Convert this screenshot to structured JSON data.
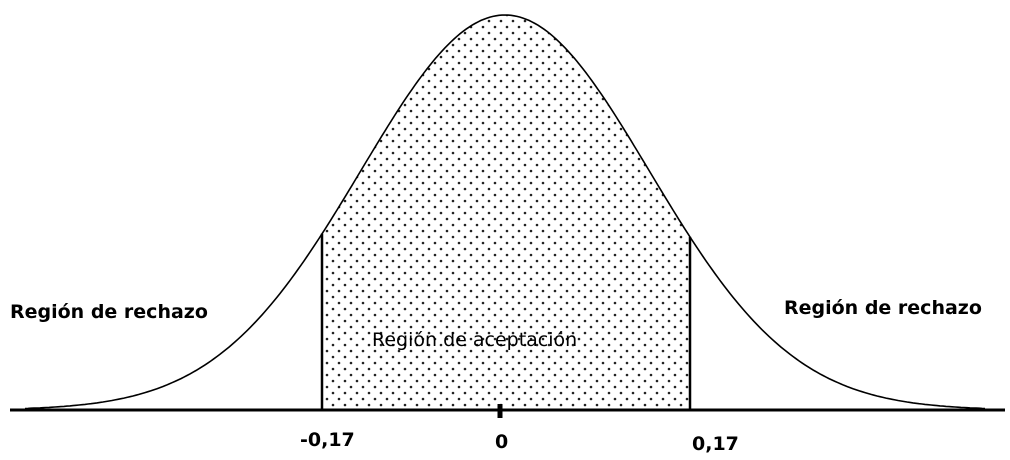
{
  "labels": {
    "left_region": "Región de rechazo",
    "right_region": "Región de rechazo",
    "center_region": "Región de aceptación"
  },
  "axis": {
    "left_cut": "-0,17",
    "center": "0",
    "right_cut": "0,17"
  }
}
